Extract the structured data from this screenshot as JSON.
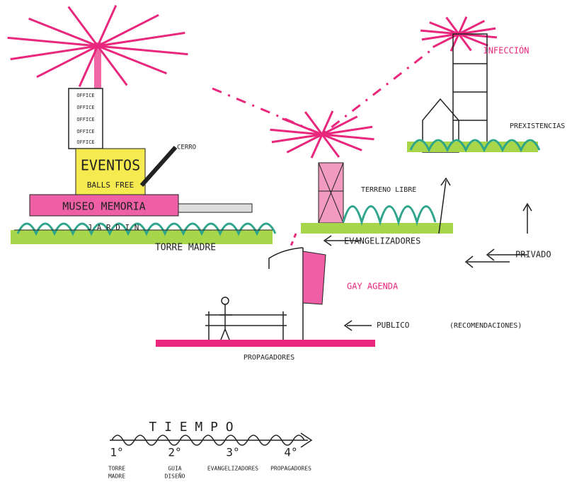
{
  "sketch": {
    "torre_madre": {
      "offices": [
        "OFFICE",
        "OFFICE",
        "OFFICE",
        "OFFICE",
        "OFFICE"
      ],
      "eventos": "EVENTOS",
      "balls_free": "BALLS FREE",
      "cerro": "CERRO",
      "museo": "MUSEO MEMORIA",
      "jardin": "J A R D I N",
      "label": "TORRE MADRE"
    },
    "infeccion": {
      "title": "INFECCIÓN",
      "prexistencias": "PREXISTENCIAS"
    },
    "evangelizadores": {
      "terreno": "TERRENO LIBRE",
      "label": "EVANGELIZADORES"
    },
    "privado": "PRIVADO",
    "gay_agenda": "GAY AGENDA",
    "publico": "PUBLICO",
    "recomendaciones": "(RECOMENDACIONES)",
    "propagadores": "PROPAGADORES",
    "timeline": {
      "title": "T I E M P O",
      "steps": [
        {
          "number": "1°",
          "label": [
            "TORRE",
            "MADRE"
          ]
        },
        {
          "number": "2°",
          "label": [
            "GUIA",
            "DISEÑO"
          ]
        },
        {
          "number": "3°",
          "label": [
            "EVANGELIZADORES"
          ]
        },
        {
          "number": "4°",
          "label": [
            "PROPAGADORES"
          ]
        }
      ]
    }
  }
}
